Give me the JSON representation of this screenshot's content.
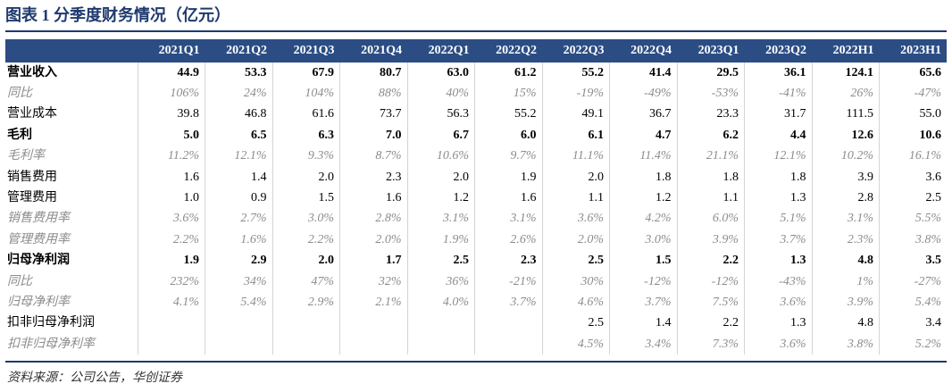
{
  "title": "图表 1   分季度财务情况（亿元）",
  "source": "资料来源：公司公告，华创证券",
  "columns": [
    "",
    "2021Q1",
    "2021Q2",
    "2021Q3",
    "2021Q4",
    "2022Q1",
    "2022Q2",
    "2022Q3",
    "2022Q4",
    "2023Q1",
    "2023Q2",
    "2022H1",
    "2023H1"
  ],
  "rows": [
    {
      "style": "bold",
      "cells": [
        "营业收入",
        "44.9",
        "53.3",
        "67.9",
        "80.7",
        "63.0",
        "61.2",
        "55.2",
        "41.4",
        "29.5",
        "36.1",
        "124.1",
        "65.6"
      ]
    },
    {
      "style": "ital",
      "cells": [
        "同比",
        "106%",
        "24%",
        "104%",
        "88%",
        "40%",
        "15%",
        "-19%",
        "-49%",
        "-53%",
        "-41%",
        "26%",
        "-47%"
      ]
    },
    {
      "style": "plain",
      "cells": [
        "营业成本",
        "39.8",
        "46.8",
        "61.6",
        "73.7",
        "56.3",
        "55.2",
        "49.1",
        "36.7",
        "23.3",
        "31.7",
        "111.5",
        "55.0"
      ]
    },
    {
      "style": "bold",
      "cells": [
        "毛利",
        "5.0",
        "6.5",
        "6.3",
        "7.0",
        "6.7",
        "6.0",
        "6.1",
        "4.7",
        "6.2",
        "4.4",
        "12.6",
        "10.6"
      ]
    },
    {
      "style": "ital",
      "cells": [
        "毛利率",
        "11.2%",
        "12.1%",
        "9.3%",
        "8.7%",
        "10.6%",
        "9.7%",
        "11.1%",
        "11.4%",
        "21.1%",
        "12.1%",
        "10.2%",
        "16.1%"
      ]
    },
    {
      "style": "plain",
      "cells": [
        "销售费用",
        "1.6",
        "1.4",
        "2.0",
        "2.3",
        "2.0",
        "1.9",
        "2.0",
        "1.8",
        "1.8",
        "1.8",
        "3.9",
        "3.6"
      ]
    },
    {
      "style": "plain",
      "cells": [
        "管理费用",
        "1.0",
        "0.9",
        "1.5",
        "1.6",
        "1.2",
        "1.6",
        "1.1",
        "1.2",
        "1.1",
        "1.3",
        "2.8",
        "2.5"
      ]
    },
    {
      "style": "ital",
      "cells": [
        "销售费用率",
        "3.6%",
        "2.7%",
        "3.0%",
        "2.8%",
        "3.1%",
        "3.1%",
        "3.6%",
        "4.2%",
        "6.0%",
        "5.1%",
        "3.1%",
        "5.5%"
      ]
    },
    {
      "style": "ital",
      "cells": [
        "管理费用率",
        "2.2%",
        "1.6%",
        "2.2%",
        "2.0%",
        "1.9%",
        "2.6%",
        "2.0%",
        "3.0%",
        "3.9%",
        "3.7%",
        "2.3%",
        "3.8%"
      ]
    },
    {
      "style": "bold",
      "cells": [
        "归母净利润",
        "1.9",
        "2.9",
        "2.0",
        "1.7",
        "2.5",
        "2.3",
        "2.5",
        "1.5",
        "2.2",
        "1.3",
        "4.8",
        "3.5"
      ]
    },
    {
      "style": "ital",
      "cells": [
        "同比",
        "232%",
        "34%",
        "47%",
        "32%",
        "36%",
        "-21%",
        "30%",
        "-12%",
        "-12%",
        "-43%",
        "1%",
        "-27%"
      ]
    },
    {
      "style": "ital",
      "cells": [
        "归母净利率",
        "4.1%",
        "5.4%",
        "2.9%",
        "2.1%",
        "4.0%",
        "3.7%",
        "4.6%",
        "3.7%",
        "7.5%",
        "3.6%",
        "3.9%",
        "5.4%"
      ]
    },
    {
      "style": "plain",
      "cells": [
        "扣非归母净利润",
        "",
        "",
        "",
        "",
        "",
        "",
        "2.5",
        "1.4",
        "2.2",
        "1.3",
        "4.8",
        "3.4"
      ]
    },
    {
      "style": "ital",
      "cells": [
        "扣非归母净利率",
        "",
        "",
        "",
        "",
        "",
        "",
        "4.5%",
        "3.4%",
        "7.3%",
        "3.6%",
        "3.8%",
        "5.2%"
      ]
    }
  ]
}
